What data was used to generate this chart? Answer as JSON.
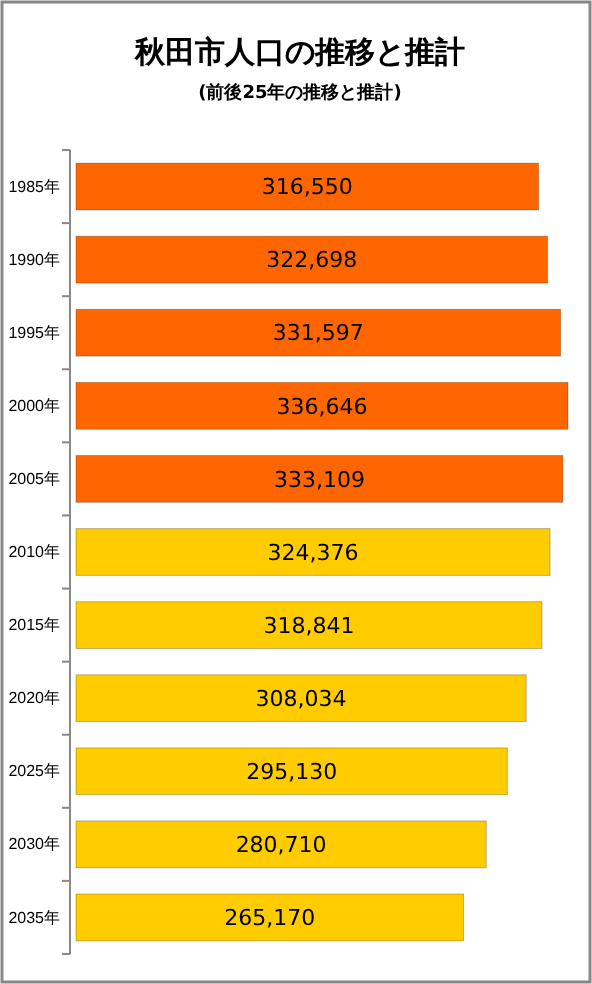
{
  "chart_data": {
    "type": "bar",
    "orientation": "horizontal",
    "title": "秋田市人口の推移と推計",
    "subtitle": "(前後25年の推移と推計)",
    "categories": [
      "1985年",
      "1990年",
      "1995年",
      "2000年",
      "2005年",
      "2010年",
      "2015年",
      "2020年",
      "2025年",
      "2030年",
      "2035年"
    ],
    "values": [
      316550,
      322698,
      331597,
      336646,
      333109,
      324376,
      318841,
      308034,
      295130,
      280710,
      265170
    ],
    "colors": [
      "#ff6600",
      "#ff6600",
      "#ff6600",
      "#ff6600",
      "#ff6600",
      "#ffcc00",
      "#ffcc00",
      "#ffcc00",
      "#ffcc00",
      "#ffcc00",
      "#ffcc00"
    ],
    "value_labels": [
      "316,550",
      "322,698",
      "331,597",
      "336,646",
      "333,109",
      "324,376",
      "318,841",
      "308,034",
      "295,130",
      "280,710",
      "265,170"
    ],
    "relative": false
  }
}
